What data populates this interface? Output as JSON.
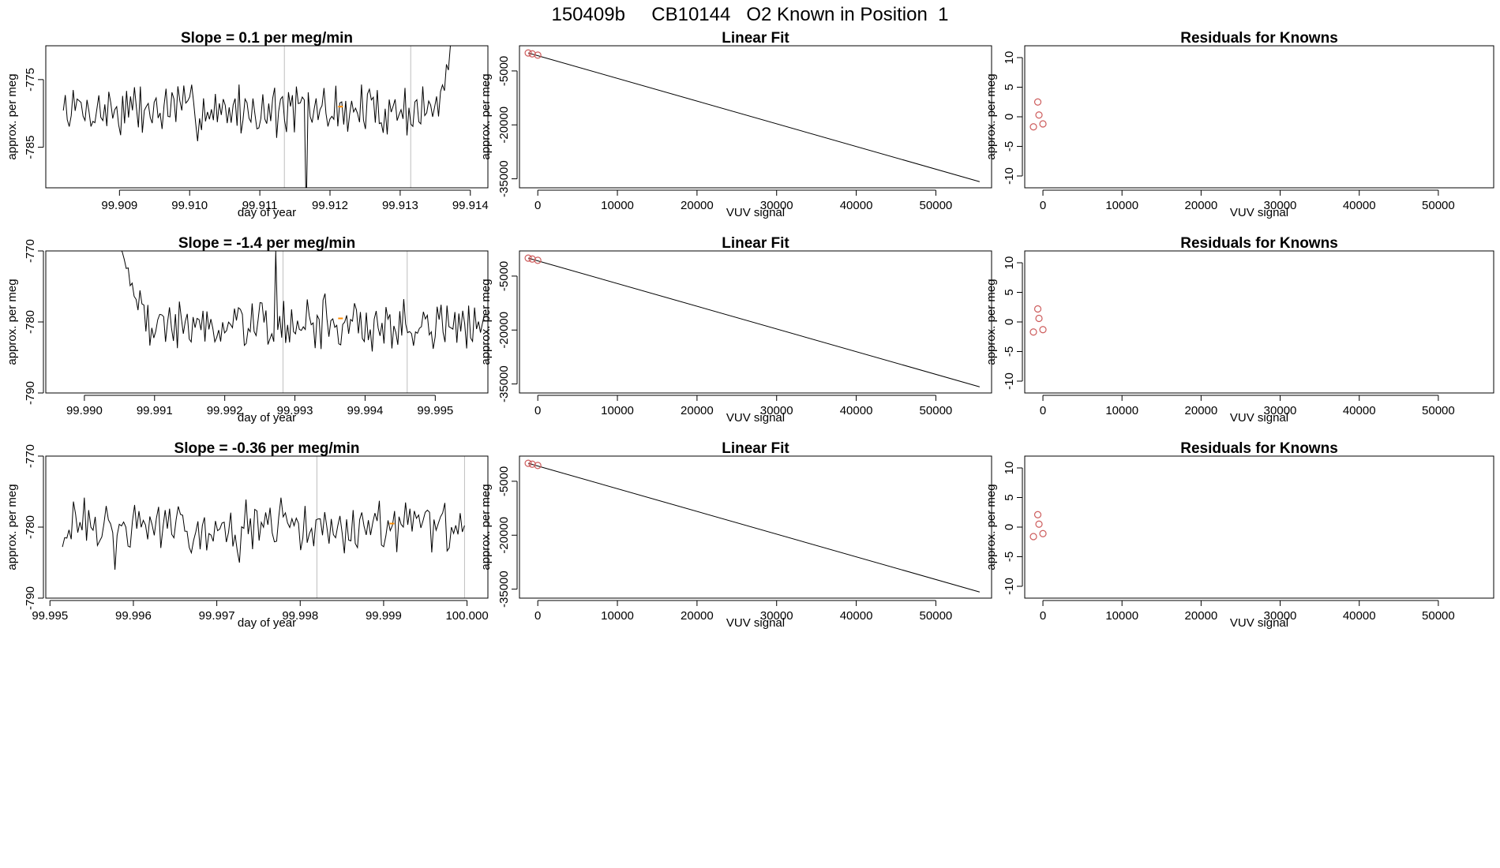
{
  "figure_title": "150409b     CB10144   O2 Known in Position  1",
  "colors": {
    "line": "#000000",
    "marker_edge": "#cd5c5c",
    "marker_orange": "#ff8c00",
    "vline": "#bebebe",
    "frame": "#000000"
  },
  "chart_data": [
    {
      "type": "line",
      "title": "Slope =  0.1  per meg/min",
      "xlabel": "day of year",
      "ylabel": "approx. per meg",
      "xlim": [
        99.90795,
        99.91425
      ],
      "ylim": [
        -791,
        -770
      ],
      "xticks": [
        {
          "v": 99.909,
          "label": "99.909"
        },
        {
          "v": 99.91,
          "label": "99.910"
        },
        {
          "v": 99.911,
          "label": "99.911"
        },
        {
          "v": 99.912,
          "label": "99.912"
        },
        {
          "v": 99.913,
          "label": "99.913"
        },
        {
          "v": 99.914,
          "label": "99.914"
        }
      ],
      "yticks": [
        {
          "v": -775,
          "label": "-775"
        },
        {
          "v": -785,
          "label": "-785"
        }
      ],
      "vlines": [
        99.91135,
        99.91315
      ],
      "marker": {
        "x": 99.91215,
        "y": -779.0
      },
      "series": {
        "x_start": 99.9082,
        "x_end": 99.9138,
        "n": 200,
        "base": -779.5,
        "amp": 3.0,
        "seed": 7,
        "events": [
          {
            "at": 0.62,
            "v": -795
          },
          {
            "at": 0.29,
            "v": -776
          }
        ],
        "tail_rise": {
          "from": 0.955,
          "to": -766
        }
      }
    },
    {
      "type": "scatter",
      "title": "Linear Fit",
      "xlabel": "VUV signal",
      "ylabel": "approx. per meg",
      "xlim": [
        -2300,
        57000
      ],
      "ylim": [
        -37500,
        2000
      ],
      "xticks": [
        {
          "v": 0,
          "label": "0"
        },
        {
          "v": 10000,
          "label": "10000"
        },
        {
          "v": 20000,
          "label": "20000"
        },
        {
          "v": 30000,
          "label": "30000"
        },
        {
          "v": 40000,
          "label": "40000"
        },
        {
          "v": 50000,
          "label": "50000"
        }
      ],
      "yticks": [
        {
          "v": -5000,
          "label": "-5000"
        },
        {
          "v": -20000,
          "label": "-20000"
        },
        {
          "v": -35000,
          "label": "-35000"
        }
      ],
      "fit_line": {
        "x1": -1200,
        "y1": 0,
        "x2": 55500,
        "y2": -35800
      },
      "points": [
        {
          "x": -1200,
          "y": 0
        },
        {
          "x": -700,
          "y": -250
        },
        {
          "x": 0,
          "y": -600
        }
      ]
    },
    {
      "type": "scatter",
      "title": "Residuals for Knowns",
      "xlabel": "VUV signal",
      "ylabel": "approx. per meg",
      "xlim": [
        -2300,
        57000
      ],
      "ylim": [
        -12,
        12
      ],
      "xticks": [
        {
          "v": 0,
          "label": "0"
        },
        {
          "v": 10000,
          "label": "10000"
        },
        {
          "v": 20000,
          "label": "20000"
        },
        {
          "v": 30000,
          "label": "30000"
        },
        {
          "v": 40000,
          "label": "40000"
        },
        {
          "v": 50000,
          "label": "50000"
        }
      ],
      "yticks": [
        {
          "v": -10,
          "label": "-10"
        },
        {
          "v": -5,
          "label": "-5"
        },
        {
          "v": 0,
          "label": "0"
        },
        {
          "v": 5,
          "label": "5"
        },
        {
          "v": 10,
          "label": "10"
        }
      ],
      "points": [
        {
          "x": -1200,
          "y": -1.7
        },
        {
          "x": -650,
          "y": 2.5
        },
        {
          "x": -500,
          "y": 0.3
        },
        {
          "x": 0,
          "y": -1.2
        }
      ]
    },
    {
      "type": "line",
      "title": "Slope =  -1.4  per meg/min",
      "xlabel": "day of year",
      "ylabel": "approx. per meg",
      "xlim": [
        99.98945,
        99.99575
      ],
      "ylim": [
        -790,
        -770
      ],
      "xticks": [
        {
          "v": 99.99,
          "label": "99.990"
        },
        {
          "v": 99.991,
          "label": "99.991"
        },
        {
          "v": 99.992,
          "label": "99.992"
        },
        {
          "v": 99.993,
          "label": "99.993"
        },
        {
          "v": 99.994,
          "label": "99.994"
        },
        {
          "v": 99.995,
          "label": "99.995"
        }
      ],
      "yticks": [
        {
          "v": -770,
          "label": "-770"
        },
        {
          "v": -780,
          "label": "-780"
        },
        {
          "v": -790,
          "label": "-790"
        }
      ],
      "vlines": [
        99.99283,
        99.9946
      ],
      "marker": {
        "x": 99.99365,
        "y": -779.5
      },
      "series": {
        "x_start": 99.9904,
        "x_end": 99.9957,
        "n": 190,
        "base": -780.5,
        "amp": 2.6,
        "seed": 19,
        "events": [
          {
            "at": 0.44,
            "v": -770
          },
          {
            "at": 0.57,
            "v": -776
          }
        ],
        "head_fall": {
          "to": 0.09,
          "from_v": -766
        }
      }
    },
    {
      "type": "scatter",
      "title": "Linear Fit",
      "xlabel": "VUV signal",
      "ylabel": "approx. per meg",
      "xlim": [
        -2300,
        57000
      ],
      "ylim": [
        -37500,
        2000
      ],
      "xticks": [
        {
          "v": 0,
          "label": "0"
        },
        {
          "v": 10000,
          "label": "10000"
        },
        {
          "v": 20000,
          "label": "20000"
        },
        {
          "v": 30000,
          "label": "30000"
        },
        {
          "v": 40000,
          "label": "40000"
        },
        {
          "v": 50000,
          "label": "50000"
        }
      ],
      "yticks": [
        {
          "v": -5000,
          "label": "-5000"
        },
        {
          "v": -20000,
          "label": "-20000"
        },
        {
          "v": -35000,
          "label": "-35000"
        }
      ],
      "fit_line": {
        "x1": -1200,
        "y1": 0,
        "x2": 55500,
        "y2": -35800
      },
      "points": [
        {
          "x": -1200,
          "y": 0
        },
        {
          "x": -700,
          "y": -250
        },
        {
          "x": 0,
          "y": -600
        }
      ]
    },
    {
      "type": "scatter",
      "title": "Residuals for Knowns",
      "xlabel": "VUV signal",
      "ylabel": "approx. per meg",
      "xlim": [
        -2300,
        57000
      ],
      "ylim": [
        -12,
        12
      ],
      "xticks": [
        {
          "v": 0,
          "label": "0"
        },
        {
          "v": 10000,
          "label": "10000"
        },
        {
          "v": 20000,
          "label": "20000"
        },
        {
          "v": 30000,
          "label": "30000"
        },
        {
          "v": 40000,
          "label": "40000"
        },
        {
          "v": 50000,
          "label": "50000"
        }
      ],
      "yticks": [
        {
          "v": -10,
          "label": "-10"
        },
        {
          "v": -5,
          "label": "-5"
        },
        {
          "v": 0,
          "label": "0"
        },
        {
          "v": 5,
          "label": "5"
        },
        {
          "v": 10,
          "label": "10"
        }
      ],
      "points": [
        {
          "x": -1200,
          "y": -1.7
        },
        {
          "x": -650,
          "y": 2.2
        },
        {
          "x": -500,
          "y": 0.6
        },
        {
          "x": 0,
          "y": -1.3
        }
      ]
    },
    {
      "type": "line",
      "title": "Slope =  -0.36  per meg/min",
      "xlabel": "day of year",
      "ylabel": "approx. per meg",
      "xlim": [
        99.99495,
        100.00025
      ],
      "ylim": [
        -790,
        -770
      ],
      "xticks": [
        {
          "v": 99.995,
          "label": "99.995"
        },
        {
          "v": 99.996,
          "label": "99.996"
        },
        {
          "v": 99.997,
          "label": "99.997"
        },
        {
          "v": 99.998,
          "label": "99.998"
        },
        {
          "v": 99.999,
          "label": "99.999"
        },
        {
          "v": 100.0,
          "label": "100.000"
        }
      ],
      "yticks": [
        {
          "v": -770,
          "label": "-770"
        },
        {
          "v": -780,
          "label": "-780"
        },
        {
          "v": -790,
          "label": "-790"
        }
      ],
      "vlines": [
        99.9982,
        99.99997
      ],
      "marker": {
        "x": 99.9991,
        "y": -779.5
      },
      "series": {
        "x_start": 99.99515,
        "x_end": 99.99997,
        "n": 185,
        "base": -780.0,
        "amp": 2.8,
        "seed": 31,
        "events": [
          {
            "at": 0.13,
            "v": -786
          },
          {
            "at": 0.44,
            "v": -785
          }
        ]
      }
    },
    {
      "type": "scatter",
      "title": "Linear Fit",
      "xlabel": "VUV signal",
      "ylabel": "approx. per meg",
      "xlim": [
        -2300,
        57000
      ],
      "ylim": [
        -37500,
        2000
      ],
      "xticks": [
        {
          "v": 0,
          "label": "0"
        },
        {
          "v": 10000,
          "label": "10000"
        },
        {
          "v": 20000,
          "label": "20000"
        },
        {
          "v": 30000,
          "label": "30000"
        },
        {
          "v": 40000,
          "label": "40000"
        },
        {
          "v": 50000,
          "label": "50000"
        }
      ],
      "yticks": [
        {
          "v": -5000,
          "label": "-5000"
        },
        {
          "v": -20000,
          "label": "-20000"
        },
        {
          "v": -35000,
          "label": "-35000"
        }
      ],
      "fit_line": {
        "x1": -1200,
        "y1": 0,
        "x2": 55500,
        "y2": -35800
      },
      "points": [
        {
          "x": -1200,
          "y": 0
        },
        {
          "x": -700,
          "y": -250
        },
        {
          "x": 0,
          "y": -600
        }
      ]
    },
    {
      "type": "scatter",
      "title": "Residuals for Knowns",
      "xlabel": "VUV signal",
      "ylabel": "approx. per meg",
      "xlim": [
        -2300,
        57000
      ],
      "ylim": [
        -12,
        12
      ],
      "xticks": [
        {
          "v": 0,
          "label": "0"
        },
        {
          "v": 10000,
          "label": "10000"
        },
        {
          "v": 20000,
          "label": "20000"
        },
        {
          "v": 30000,
          "label": "30000"
        },
        {
          "v": 40000,
          "label": "40000"
        },
        {
          "v": 50000,
          "label": "50000"
        }
      ],
      "yticks": [
        {
          "v": -10,
          "label": "-10"
        },
        {
          "v": -5,
          "label": "-5"
        },
        {
          "v": 0,
          "label": "0"
        },
        {
          "v": 5,
          "label": "5"
        },
        {
          "v": 10,
          "label": "10"
        }
      ],
      "points": [
        {
          "x": -1200,
          "y": -1.6
        },
        {
          "x": -650,
          "y": 2.1
        },
        {
          "x": -500,
          "y": 0.5
        },
        {
          "x": 0,
          "y": -1.1
        }
      ]
    }
  ]
}
